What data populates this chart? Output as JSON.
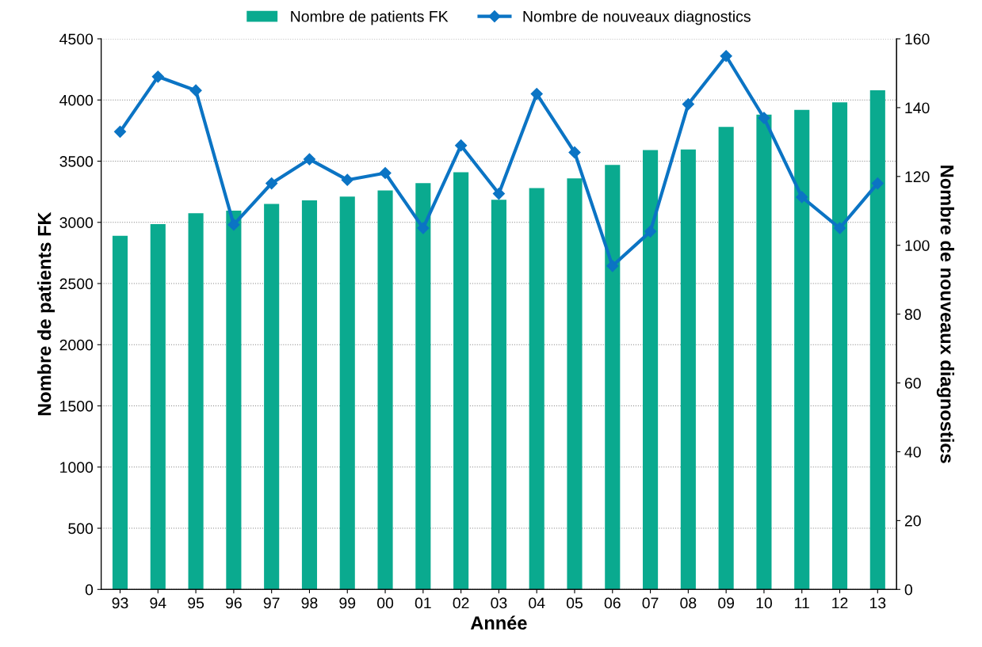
{
  "chart_data": {
    "type": "bar",
    "xlabel": "Année",
    "ylabel": "Nombre de patients FK",
    "y2label": "Nombre de nouveaux diagnostics",
    "categories": [
      "93",
      "94",
      "95",
      "96",
      "97",
      "98",
      "99",
      "00",
      "01",
      "02",
      "03",
      "04",
      "05",
      "06",
      "07",
      "08",
      "09",
      "10",
      "11",
      "12",
      "13"
    ],
    "series": [
      {
        "name": "Nombre de patients FK",
        "color": "#0aaa8f",
        "values": [
          2890,
          2985,
          3075,
          3095,
          3150,
          3180,
          3210,
          3260,
          3320,
          3410,
          3185,
          3280,
          3360,
          3470,
          3590,
          3595,
          3780,
          3880,
          3920,
          3980,
          4080
        ]
      },
      {
        "name": "Nombre de nouveaux diagnostics",
        "type": "line",
        "axis": "y2",
        "color": "#0b74c4",
        "marker": "diamond",
        "values": [
          133,
          149,
          145,
          106,
          118,
          125,
          119,
          121,
          105,
          129,
          115,
          144,
          127,
          94,
          104,
          141,
          155,
          137,
          114,
          105,
          118
        ]
      }
    ],
    "ylim": [
      0,
      4500
    ],
    "yticks": [
      0,
      500,
      1000,
      1500,
      2000,
      2500,
      3000,
      3500,
      4000,
      4500
    ],
    "y2lim": [
      0,
      160
    ],
    "y2ticks": [
      0,
      20,
      40,
      60,
      80,
      100,
      120,
      140,
      160
    ],
    "grid": "y",
    "legend": "top"
  }
}
